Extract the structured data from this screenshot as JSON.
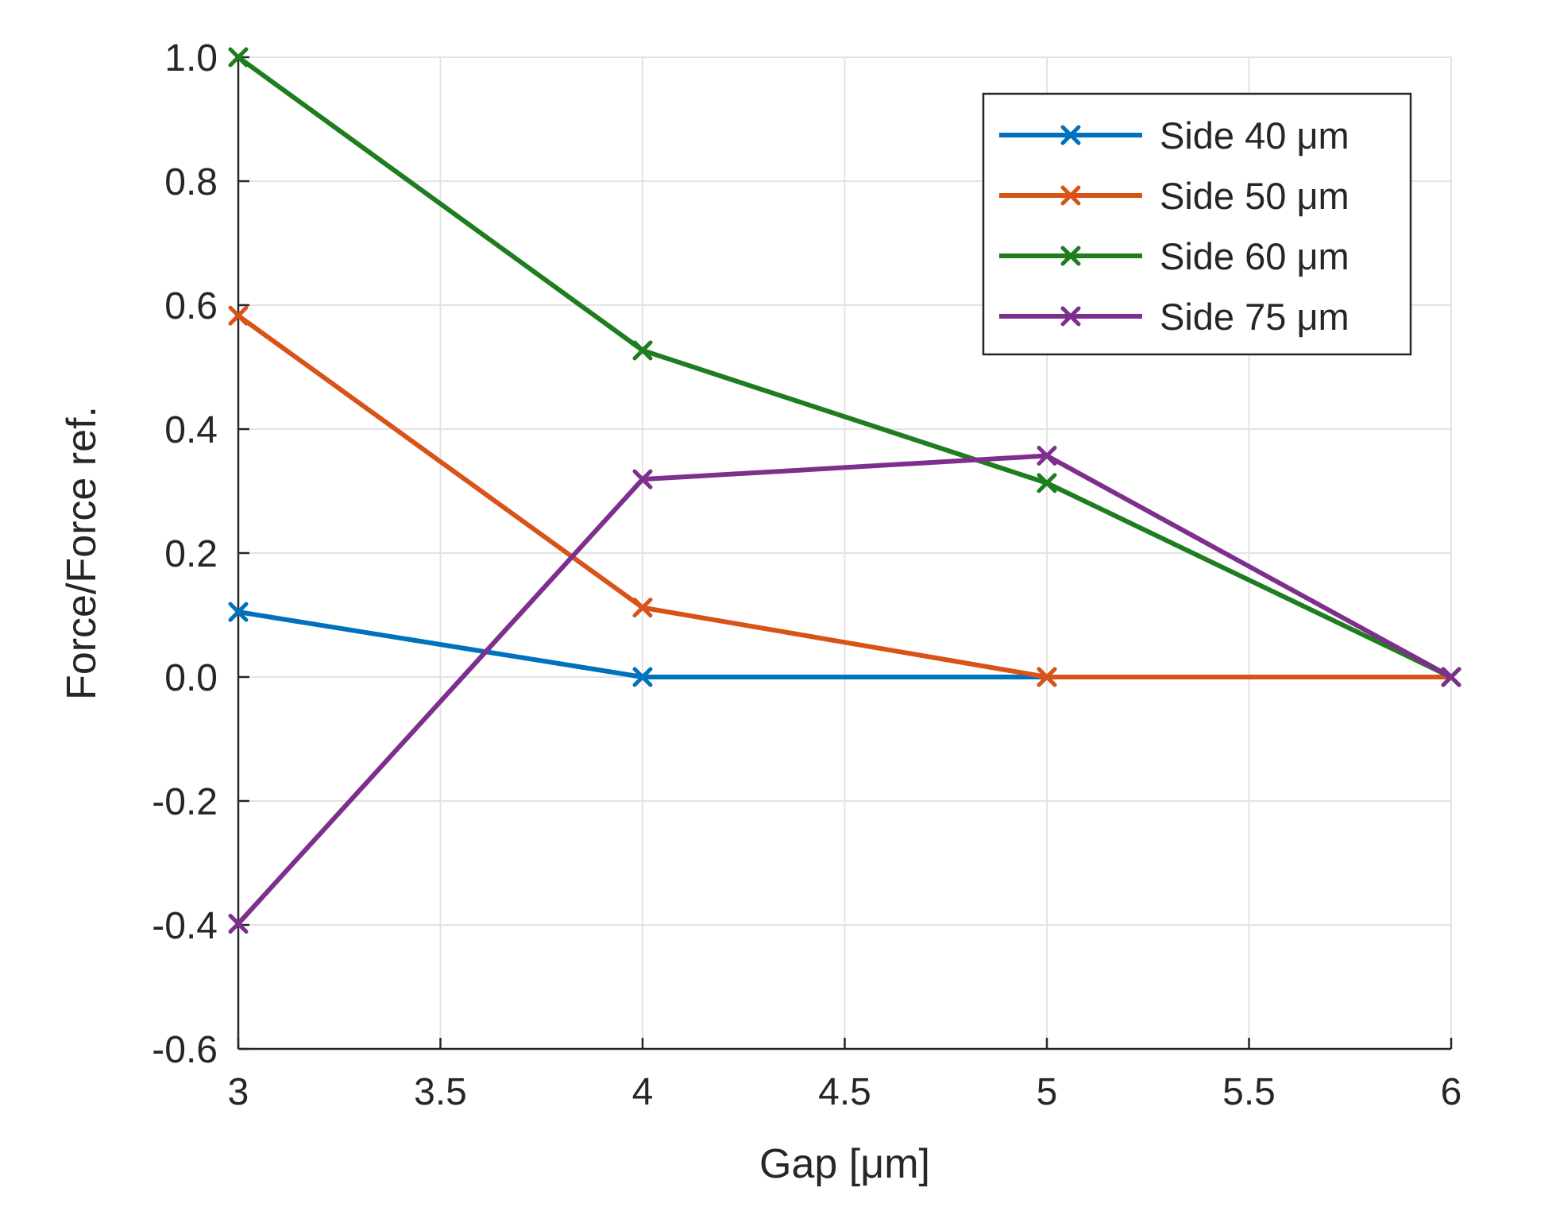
{
  "chart_data": {
    "type": "line",
    "title": "",
    "xlabel": "Gap [μm]",
    "ylabel": "Force/Force ref.",
    "xlim": [
      3,
      6
    ],
    "ylim": [
      -0.6,
      1.0
    ],
    "xticks": [
      3,
      3.5,
      4,
      4.5,
      5,
      5.5,
      6
    ],
    "xtick_labels": [
      "3",
      "3.5",
      "4",
      "4.5",
      "5",
      "5.5",
      "6"
    ],
    "yticks": [
      -0.6,
      -0.4,
      -0.2,
      0.0,
      0.2,
      0.4,
      0.6,
      0.8,
      1.0
    ],
    "ytick_labels": [
      "-0.6",
      "-0.4",
      "-0.2",
      "0.0",
      "0.2",
      "0.4",
      "0.6",
      "0.8",
      "1.0"
    ],
    "grid": true,
    "legend_position": "top-right",
    "marker": "x",
    "x": [
      3,
      4,
      5,
      6
    ],
    "series": [
      {
        "name": "Side 40 μm",
        "color": "#0072BD",
        "values": [
          0.105,
          0.0,
          0.0,
          0.0
        ]
      },
      {
        "name": "Side 50 μm",
        "color": "#D95319",
        "values": [
          0.583,
          0.112,
          0.0,
          0.0
        ]
      },
      {
        "name": "Side 60 μm",
        "color": "#1E7D1E",
        "values": [
          1.0,
          0.527,
          0.313,
          0.0
        ]
      },
      {
        "name": "Side 75 μm",
        "color": "#7E2F8E",
        "values": [
          -0.398,
          0.319,
          0.357,
          0.0
        ]
      }
    ]
  }
}
